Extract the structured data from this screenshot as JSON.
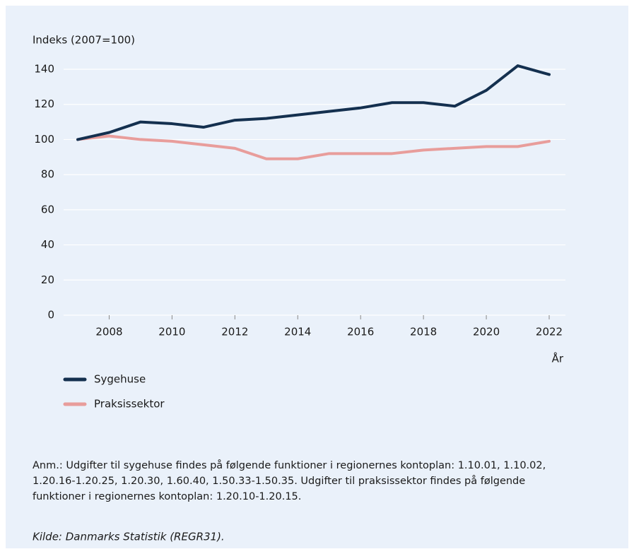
{
  "chart_data": {
    "type": "line",
    "y_label": "Indeks (2007=100)",
    "x_label": "År",
    "x": [
      2007,
      2008,
      2009,
      2010,
      2011,
      2012,
      2013,
      2014,
      2015,
      2016,
      2017,
      2018,
      2019,
      2020,
      2021,
      2022
    ],
    "series": [
      {
        "name": "Sygehuse",
        "color": "#14304f",
        "values": [
          100,
          104,
          110,
          109,
          107,
          111,
          112,
          114,
          116,
          118,
          121,
          121,
          119,
          128,
          142,
          137
        ]
      },
      {
        "name": "Praksissektor",
        "color": "#e89d9b",
        "values": [
          100,
          102,
          100,
          99,
          97,
          95,
          89,
          89,
          92,
          92,
          92,
          94,
          95,
          96,
          96,
          99
        ]
      }
    ],
    "xlim": [
      2007,
      2022
    ],
    "xticks": [
      2008,
      2010,
      2012,
      2014,
      2016,
      2018,
      2020,
      2022
    ],
    "ylim": [
      0,
      140
    ],
    "yticks": [
      0,
      20,
      40,
      60,
      80,
      100,
      120,
      140
    ],
    "grid": true,
    "note": [
      "Anm.: Udgifter til sygehuse findes på følgende funktioner i regionernes kontoplan: 1.10.01, 1.10.02,",
      "1.20.16-1.20.25, 1.20.30, 1.60.40, 1.50.33-1.50.35. Udgifter til praksissektor findes på følgende",
      "funktioner i regionernes kontoplan: 1.20.10-1.20.15."
    ],
    "source": "Kilde: Danmarks Statistik (REGR31)."
  }
}
